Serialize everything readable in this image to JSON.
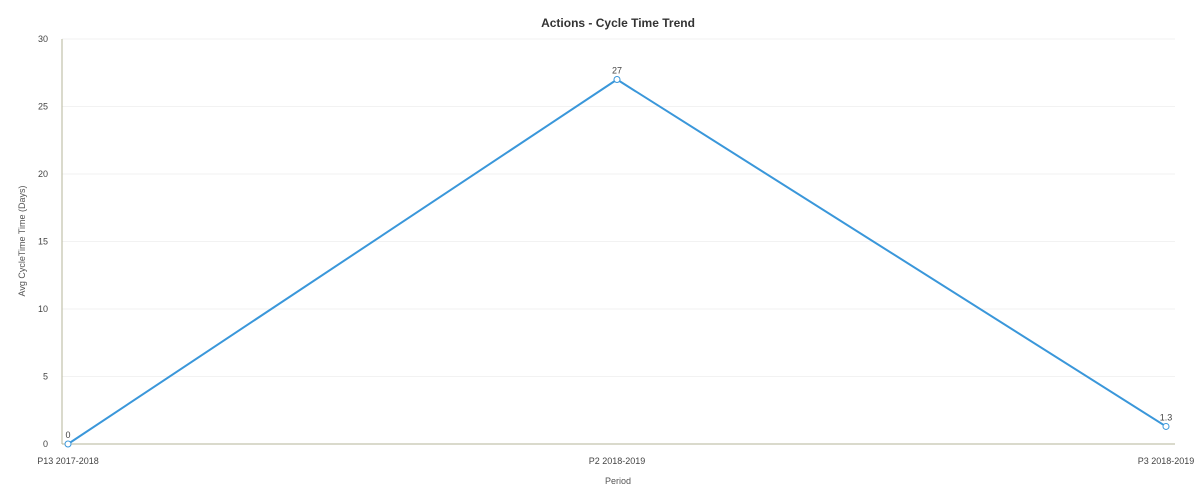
{
  "chart_data": {
    "type": "line",
    "title": "Actions - Cycle Time Trend",
    "xlabel": "Period",
    "ylabel": "Avg CycleTime Time (Days)",
    "categories": [
      "P13 2017-2018",
      "P2 2018-2019",
      "P3 2018-2019"
    ],
    "series": [
      {
        "values": [
          0,
          27,
          1.3
        ],
        "data_labels": [
          "0",
          "27",
          "1.3"
        ],
        "color": "#3a97da"
      }
    ],
    "ylim": [
      0,
      30
    ],
    "yticks": [
      0,
      5,
      10,
      15,
      20,
      25,
      30
    ],
    "ytick_labels": [
      "0",
      "5",
      "10",
      "15",
      "20",
      "25",
      "30"
    ],
    "grid": true,
    "legend": "none",
    "colors": {
      "line": "#3a97da",
      "marker_fill": "#ffffff",
      "axis": "#b5b59a",
      "grid": "#f2f2f2"
    }
  }
}
